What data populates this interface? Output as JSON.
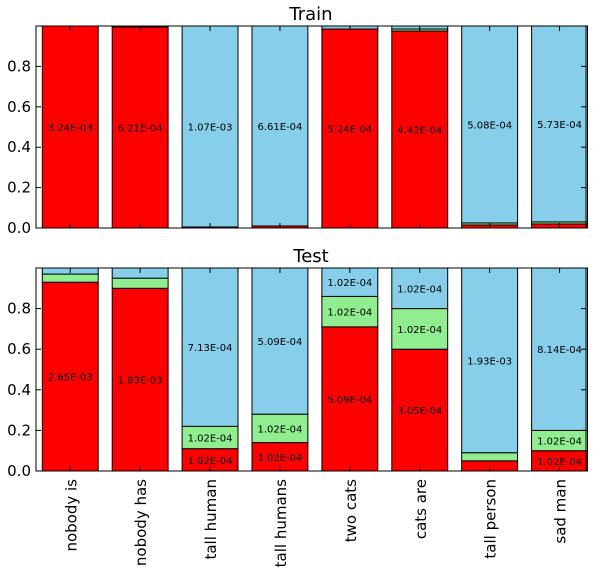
{
  "colors": {
    "red": "#ff0000",
    "green": "#90ee90",
    "blue": "#87ceeb"
  },
  "chart_data": [
    {
      "type": "bar",
      "stacked": true,
      "title": "Train",
      "xlabel": "",
      "ylabel": "",
      "ylim": [
        0,
        1
      ],
      "yticks": [
        "0.0",
        "0.2",
        "0.4",
        "0.6",
        "0.8"
      ],
      "categories": [
        "nobody is",
        "nobody has",
        "tall human",
        "tall humans",
        "two cats",
        "cats are",
        "tall person",
        "sad man"
      ],
      "series": [
        {
          "color": "red",
          "values": [
            1.0,
            0.995,
            0.005,
            0.01,
            0.985,
            0.975,
            0.015,
            0.02
          ],
          "labels": [
            "3.24E-03",
            "6.21E-04",
            "",
            "",
            "5.24E-04",
            "4.42E-04",
            "",
            ""
          ]
        },
        {
          "color": "green",
          "values": [
            0.0,
            0.0,
            0.0,
            0.0,
            0.0,
            0.01,
            0.01,
            0.01
          ],
          "labels": [
            "",
            "",
            "",
            "",
            "",
            "",
            "",
            ""
          ]
        },
        {
          "color": "blue",
          "values": [
            0.0,
            0.005,
            0.995,
            0.99,
            0.015,
            0.015,
            0.975,
            0.97
          ],
          "labels": [
            "",
            "",
            "1.07E-03",
            "6.61E-04",
            "",
            "",
            "5.08E-04",
            "5.73E-04"
          ]
        }
      ]
    },
    {
      "type": "bar",
      "stacked": true,
      "title": "Test",
      "xlabel": "",
      "ylabel": "",
      "ylim": [
        0,
        1
      ],
      "yticks": [
        "0.0",
        "0.2",
        "0.4",
        "0.6",
        "0.8"
      ],
      "categories": [
        "nobody is",
        "nobody has",
        "tall human",
        "tall humans",
        "two cats",
        "cats are",
        "tall person",
        "sad man"
      ],
      "series": [
        {
          "color": "red",
          "values": [
            0.93,
            0.9,
            0.11,
            0.14,
            0.71,
            0.6,
            0.05,
            0.1
          ],
          "labels": [
            "2.65E-03",
            "1.83E-03",
            "1.02E-04",
            "1.02E-04",
            "5.09E-04",
            "3.05E-04",
            "",
            "1.02E-04"
          ]
        },
        {
          "color": "green",
          "values": [
            0.04,
            0.05,
            0.11,
            0.14,
            0.15,
            0.2,
            0.04,
            0.1
          ],
          "labels": [
            "",
            "",
            "1.02E-04",
            "1.02E-04",
            "1.02E-04",
            "1.02E-04",
            "",
            "1.02E-04"
          ]
        },
        {
          "color": "blue",
          "values": [
            0.03,
            0.05,
            0.78,
            0.72,
            0.14,
            0.2,
            0.91,
            0.8
          ],
          "labels": [
            "",
            "",
            "7.13E-04",
            "5.09E-04",
            "1.02E-04",
            "1.02E-04",
            "1.93E-03",
            "8.14E-04"
          ]
        }
      ]
    }
  ]
}
